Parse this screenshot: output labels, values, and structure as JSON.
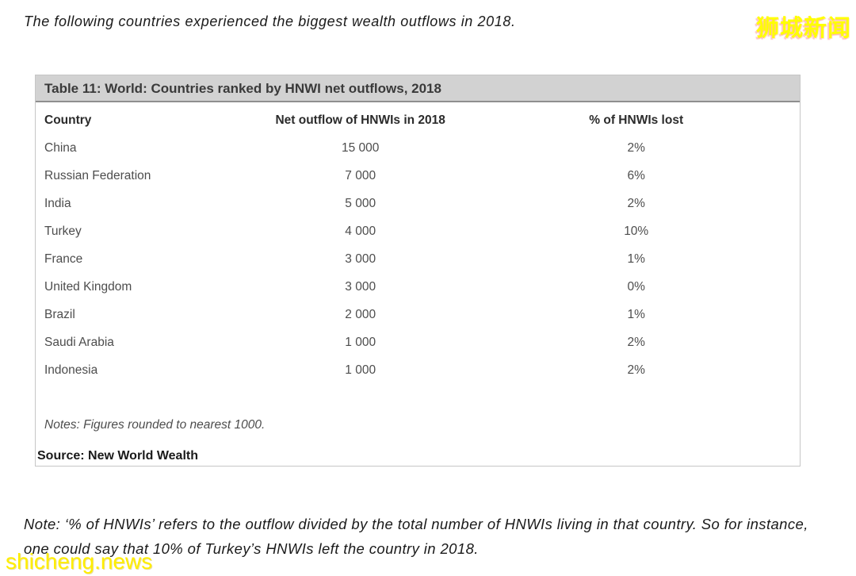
{
  "page": {
    "intro_text": "The following countries experienced the biggest wealth outflows in 2018.",
    "watermark_top": "狮城新闻",
    "watermark_bottom": "shicheng.news",
    "bottom_note": "Note: ‘% of HNWIs’ refers to the outflow divided by the total number of HNWIs living in that country. So for instance, one could say that 10% of Turkey’s HNWIs left the country in 2018."
  },
  "table": {
    "title": "Table 11: World: Countries ranked by HNWI net outflows, 2018",
    "columns": [
      "Country",
      "Net outflow of HNWIs in 2018",
      "% of HNWIs lost"
    ],
    "rows": [
      {
        "country": "China",
        "outflow": "15 000",
        "pct": "2%"
      },
      {
        "country": "Russian Federation",
        "outflow": "7 000",
        "pct": "6%"
      },
      {
        "country": "India",
        "outflow": "5 000",
        "pct": "2%"
      },
      {
        "country": "Turkey",
        "outflow": "4 000",
        "pct": "10%"
      },
      {
        "country": "France",
        "outflow": "3 000",
        "pct": "1%"
      },
      {
        "country": "United Kingdom",
        "outflow": "3 000",
        "pct": "0%"
      },
      {
        "country": "Brazil",
        "outflow": "2 000",
        "pct": "1%"
      },
      {
        "country": "Saudi Arabia",
        "outflow": "1 000",
        "pct": "2%"
      },
      {
        "country": "Indonesia",
        "outflow": "1 000",
        "pct": "2%"
      }
    ],
    "notes": "Notes: Figures rounded to nearest 1000.",
    "source": "Source: New World Wealth"
  },
  "chart_data": {
    "type": "table",
    "title": "Table 11: World: Countries ranked by HNWI net outflows, 2018",
    "categories": [
      "China",
      "Russian Federation",
      "India",
      "Turkey",
      "France",
      "United Kingdom",
      "Brazil",
      "Saudi Arabia",
      "Indonesia"
    ],
    "series": [
      {
        "name": "Net outflow of HNWIs in 2018",
        "values": [
          15000,
          7000,
          5000,
          4000,
          3000,
          3000,
          2000,
          1000,
          1000
        ]
      },
      {
        "name": "% of HNWIs lost",
        "values": [
          2,
          6,
          2,
          10,
          1,
          0,
          1,
          2,
          2
        ]
      }
    ]
  },
  "colors": {
    "watermark_yellow": "#ffff00",
    "table_header_bg": "#d2d2d2",
    "table_border": "#c6c6c6",
    "row_text": "#4d4d4d",
    "heading_text": "#2b2b2b"
  }
}
